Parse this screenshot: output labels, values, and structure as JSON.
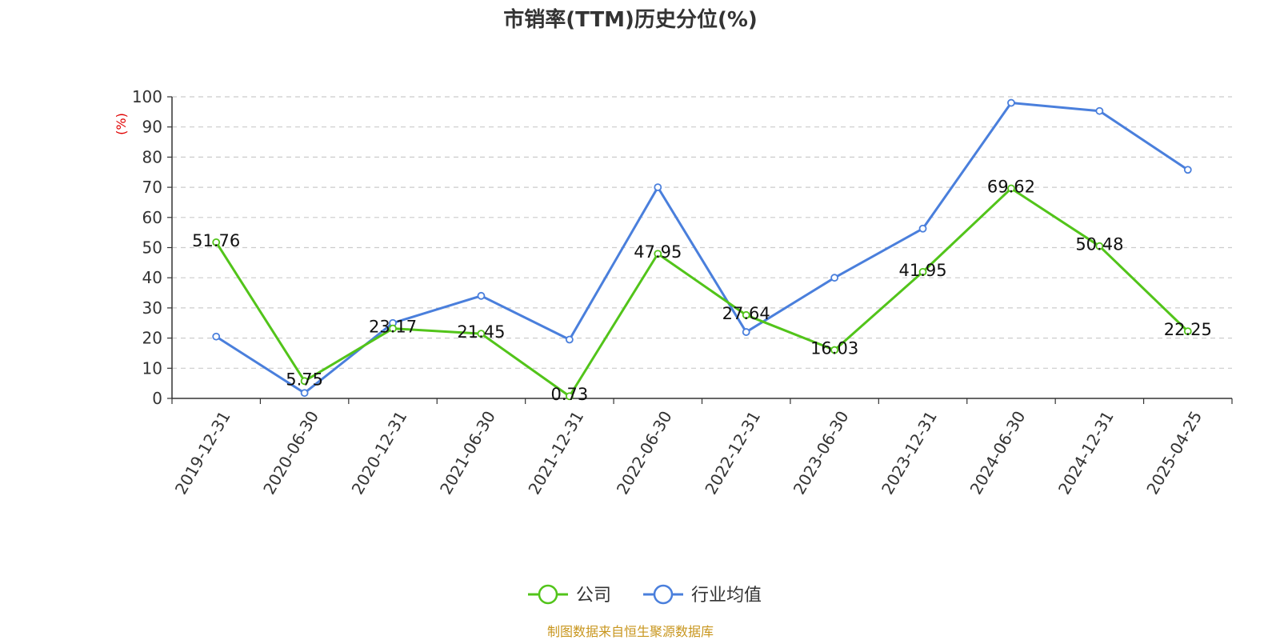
{
  "chart_data": {
    "type": "line",
    "title": "市销率(TTM)历史分位(%)",
    "ylabel": "(%)",
    "xlabel": "",
    "ylim": [
      0,
      100
    ],
    "yticks": [
      0,
      10,
      20,
      30,
      40,
      50,
      60,
      70,
      80,
      90,
      100
    ],
    "grid": true,
    "legend_position": "bottom-center",
    "categories": [
      "2019-12-31",
      "2020-06-30",
      "2020-12-31",
      "2021-06-30",
      "2021-12-31",
      "2022-06-30",
      "2022-12-31",
      "2023-06-30",
      "2023-12-31",
      "2024-06-30",
      "2024-12-31",
      "2025-04-25"
    ],
    "series": [
      {
        "name": "公司",
        "color": "#52c41a",
        "values": [
          51.76,
          5.75,
          23.17,
          21.45,
          0.73,
          47.95,
          27.64,
          16.03,
          41.95,
          69.62,
          50.48,
          22.25
        ],
        "labels": [
          "51.76",
          "5.75",
          "23.17",
          "21.45",
          "0.73",
          "47.95",
          "27.64",
          "16.03",
          "41.95",
          "69.62",
          "50.48",
          "22.25"
        ]
      },
      {
        "name": "行业均值",
        "color": "#4a7fdc",
        "values": [
          20.5,
          1.8,
          25.0,
          34.0,
          19.5,
          70.0,
          22.0,
          40.0,
          56.3,
          98.0,
          95.3,
          75.8
        ]
      }
    ],
    "source": "制图数据来自恒生聚源数据库",
    "colors": {
      "ylabel": "#e00000",
      "source": "#c8961e",
      "grid": "#cccccc",
      "axis": "#333333"
    }
  }
}
